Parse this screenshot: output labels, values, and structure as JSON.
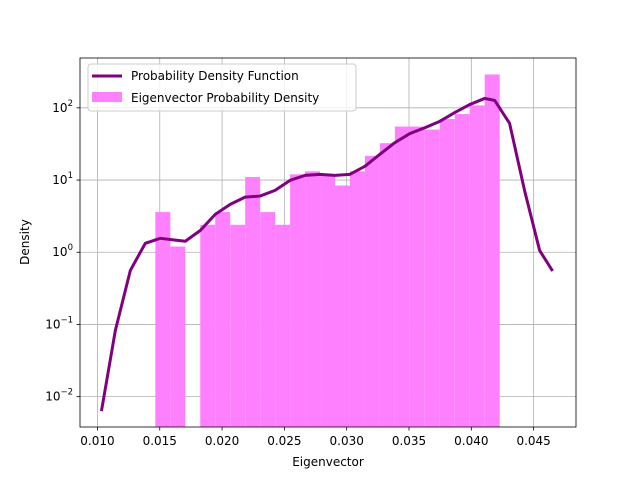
{
  "chart_data": {
    "type": "histogram",
    "xlabel": "Eigenvector",
    "ylabel": "Density",
    "log_y": true,
    "grid": true,
    "legend": "upper left",
    "xlim": [
      0.0086,
      0.0484
    ],
    "ylim": [
      0.0038,
      490
    ],
    "xticks": [
      {
        "value": 0.01,
        "label": "0.010"
      },
      {
        "value": 0.015,
        "label": "0.015"
      },
      {
        "value": 0.02,
        "label": "0.020"
      },
      {
        "value": 0.025,
        "label": "0.025"
      },
      {
        "value": 0.03,
        "label": "0.030"
      },
      {
        "value": 0.035,
        "label": "0.035"
      },
      {
        "value": 0.04,
        "label": "0.040"
      },
      {
        "value": 0.045,
        "label": "0.045"
      }
    ],
    "yticks": [
      {
        "value": 0.01,
        "label": "10",
        "exponent": "−2"
      },
      {
        "value": 0.1,
        "label": "10",
        "exponent": "−1"
      },
      {
        "value": 1,
        "label": "10",
        "exponent": "0"
      },
      {
        "value": 10,
        "label": "10",
        "exponent": "1"
      },
      {
        "value": 100,
        "label": "10",
        "exponent": "2"
      }
    ],
    "histogram": {
      "name": "Eigenvector Probability Density",
      "color": "#ff80ff",
      "bins": [
        0.014645,
        0.015846,
        0.017048,
        0.018249,
        0.019451,
        0.020652,
        0.021853,
        0.023055,
        0.024256,
        0.025458,
        0.026659,
        0.02786,
        0.029062,
        0.030263,
        0.031465,
        0.032666,
        0.033867,
        0.035069,
        0.03627,
        0.037472,
        0.038673,
        0.039874,
        0.041076,
        0.042277
      ],
      "values": [
        3.6,
        1.2,
        0,
        2.4,
        3.6,
        2.4,
        11,
        3.6,
        2.4,
        12,
        13.2,
        12,
        8.4,
        13.2,
        21.6,
        32.4,
        55,
        55,
        50,
        70,
        82,
        108,
        290
      ]
    },
    "line": {
      "name": "Probability Density Function",
      "color": "#800080",
      "x": [
        0.01032,
        0.01144,
        0.01264,
        0.01384,
        0.01504,
        0.01625,
        0.01705,
        0.01825,
        0.01945,
        0.02065,
        0.02185,
        0.02305,
        0.02425,
        0.02546,
        0.02666,
        0.02786,
        0.02906,
        0.03026,
        0.03146,
        0.03266,
        0.03387,
        0.03507,
        0.03627,
        0.03747,
        0.03867,
        0.03987,
        0.04107,
        0.04187,
        0.04307,
        0.04427,
        0.04548,
        0.04652
      ],
      "y": [
        0.0063,
        0.083,
        0.56,
        1.33,
        1.56,
        1.47,
        1.42,
        2.0,
        3.35,
        4.6,
        5.8,
        6.0,
        7.2,
        9.9,
        11.6,
        12,
        11.6,
        12,
        15.5,
        22.7,
        33,
        44,
        53,
        65,
        86,
        111,
        135,
        127,
        61,
        7.2,
        1.06,
        0.55
      ]
    }
  }
}
